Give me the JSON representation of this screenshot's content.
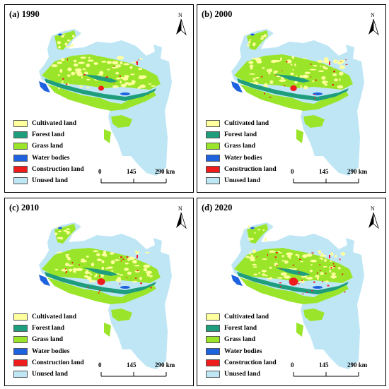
{
  "panels": [
    {
      "title": "(a) 1990",
      "year": 1990
    },
    {
      "title": "(b) 2000",
      "year": 2000
    },
    {
      "title": "(c) 2010",
      "year": 2010
    },
    {
      "title": "(d) 2020",
      "year": 2020
    }
  ],
  "north_label": "N",
  "legend": [
    {
      "label": "Cultivated land",
      "color": "#ffff9e"
    },
    {
      "label": "Forest land",
      "color": "#1f9e7d"
    },
    {
      "label": "Grass land",
      "color": "#9ae52a"
    },
    {
      "label": "Water bodies",
      "color": "#1f62e0"
    },
    {
      "label": "Construction land",
      "color": "#ee1c1c"
    },
    {
      "label": "Unused land",
      "color": "#bfe6f5"
    }
  ],
  "scale": {
    "labels": [
      "0",
      "145",
      "290 km"
    ]
  }
}
